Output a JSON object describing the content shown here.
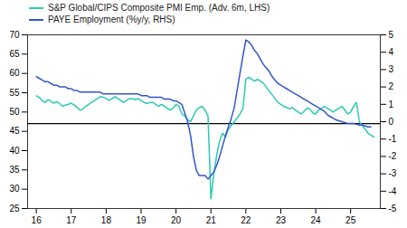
{
  "chart_data": {
    "type": "line",
    "x": [
      16.0,
      16.083,
      16.167,
      16.25,
      16.333,
      16.417,
      16.5,
      16.583,
      16.667,
      16.75,
      16.833,
      16.917,
      17.0,
      17.083,
      17.167,
      17.25,
      17.333,
      17.417,
      17.5,
      17.583,
      17.667,
      17.75,
      17.833,
      17.917,
      18.0,
      18.083,
      18.167,
      18.25,
      18.333,
      18.417,
      18.5,
      18.583,
      18.667,
      18.75,
      18.833,
      18.917,
      19.0,
      19.083,
      19.167,
      19.25,
      19.333,
      19.417,
      19.5,
      19.583,
      19.667,
      19.75,
      19.833,
      19.917,
      20.0,
      20.083,
      20.167,
      20.25,
      20.333,
      20.417,
      20.5,
      20.583,
      20.667,
      20.75,
      20.833,
      20.917,
      21.0,
      21.083,
      21.167,
      21.25,
      21.333,
      21.417,
      21.5,
      21.583,
      21.667,
      21.75,
      21.833,
      21.917,
      22.0,
      22.083,
      22.167,
      22.25,
      22.333,
      22.417,
      22.5,
      22.583,
      22.667,
      22.75,
      22.833,
      22.917,
      23.0,
      23.083,
      23.167,
      23.25,
      23.333,
      23.417,
      23.5,
      23.583,
      23.667,
      23.75,
      23.833,
      23.917,
      24.0,
      24.083,
      24.167,
      24.25,
      24.333,
      24.417,
      24.5,
      24.583,
      24.667,
      24.75,
      24.833,
      24.917,
      25.0,
      25.083,
      25.167,
      25.25,
      25.333,
      25.417,
      25.5,
      25.583,
      25.667
    ],
    "xlim": [
      15.75,
      25.85
    ],
    "xticks": [
      16,
      17,
      18,
      19,
      20,
      21,
      22,
      23,
      24,
      25
    ],
    "ylim": [
      25,
      70
    ],
    "yticks": [
      25,
      30,
      35,
      40,
      45,
      50,
      55,
      60,
      65,
      70
    ],
    "y2lim": [
      -5,
      5
    ],
    "y2ticks": [
      -5,
      -4,
      -3,
      -2,
      -1,
      0,
      1,
      2,
      3,
      4,
      5
    ],
    "series": [
      {
        "name": "S&P Global/CIPS Composite PMI Emp. (Adv. 6m, LHS)",
        "color": "#2dc9b4",
        "values": [
          54.2,
          53.8,
          53.0,
          52.5,
          53.2,
          52.8,
          52.3,
          52.7,
          52.2,
          51.5,
          51.8,
          52.0,
          52.3,
          51.8,
          51.2,
          50.5,
          50.8,
          51.5,
          52.0,
          52.5,
          53.0,
          53.5,
          54.0,
          53.8,
          53.5,
          53.0,
          53.5,
          54.0,
          53.5,
          53.0,
          52.5,
          53.0,
          53.5,
          53.5,
          53.2,
          53.5,
          53.0,
          52.5,
          52.2,
          52.5,
          52.5,
          52.0,
          51.5,
          52.0,
          51.5,
          51.0,
          50.5,
          51.0,
          52.0,
          51.5,
          49.5,
          49.0,
          48.0,
          47.5,
          49.0,
          50.5,
          51.2,
          51.5,
          50.5,
          49.0,
          27.5,
          34.0,
          39.0,
          42.5,
          44.5,
          43.5,
          45.5,
          46.5,
          47.5,
          48.5,
          49.5,
          51.0,
          58.5,
          59.0,
          58.5,
          58.0,
          58.5,
          58.0,
          57.5,
          56.5,
          55.5,
          54.5,
          53.5,
          52.5,
          52.0,
          51.5,
          51.2,
          50.8,
          51.2,
          50.5,
          50.0,
          49.5,
          50.2,
          51.0,
          50.8,
          49.8,
          49.5,
          50.5,
          51.0,
          51.5,
          51.0,
          50.5,
          50.0,
          50.5,
          51.0,
          51.5,
          50.5,
          49.5,
          50.0,
          51.5,
          52.5,
          47.5,
          46.5,
          45.5,
          44.5,
          44.0,
          43.5
        ]
      },
      {
        "name": "PAYE Employment (%y/y, RHS)",
        "color": "#3355cc",
        "axis": "y2",
        "values": [
          2.6,
          2.5,
          2.4,
          2.3,
          2.3,
          2.2,
          2.1,
          2.1,
          2.0,
          2.0,
          2.0,
          1.9,
          1.9,
          1.8,
          1.8,
          1.7,
          1.7,
          1.7,
          1.7,
          1.7,
          1.7,
          1.7,
          1.7,
          1.6,
          1.6,
          1.6,
          1.6,
          1.6,
          1.6,
          1.6,
          1.6,
          1.6,
          1.6,
          1.6,
          1.6,
          1.6,
          1.5,
          1.5,
          1.5,
          1.4,
          1.4,
          1.4,
          1.4,
          1.4,
          1.3,
          1.3,
          1.3,
          1.2,
          1.2,
          1.1,
          1.0,
          0.5,
          0.0,
          -0.8,
          -2.0,
          -2.8,
          -3.1,
          -3.1,
          -3.1,
          -3.3,
          -3.1,
          -2.9,
          -2.5,
          -2.0,
          -1.4,
          -0.8,
          -0.3,
          0.2,
          0.8,
          1.8,
          2.8,
          3.8,
          4.7,
          4.6,
          4.4,
          4.1,
          3.9,
          3.6,
          3.3,
          3.1,
          2.9,
          2.6,
          2.4,
          2.2,
          2.1,
          2.0,
          1.9,
          1.8,
          1.7,
          1.6,
          1.5,
          1.4,
          1.3,
          1.2,
          1.1,
          1.0,
          0.9,
          0.8,
          0.7,
          0.6,
          0.4,
          0.3,
          0.2,
          0.1,
          0.05,
          0.0,
          -0.05,
          -0.1,
          -0.1,
          -0.1,
          -0.15,
          -0.2,
          -0.2,
          -0.25,
          -0.3,
          -0.3,
          null
        ]
      }
    ],
    "hline": 47.0,
    "legend": "upper left",
    "grid": false
  }
}
